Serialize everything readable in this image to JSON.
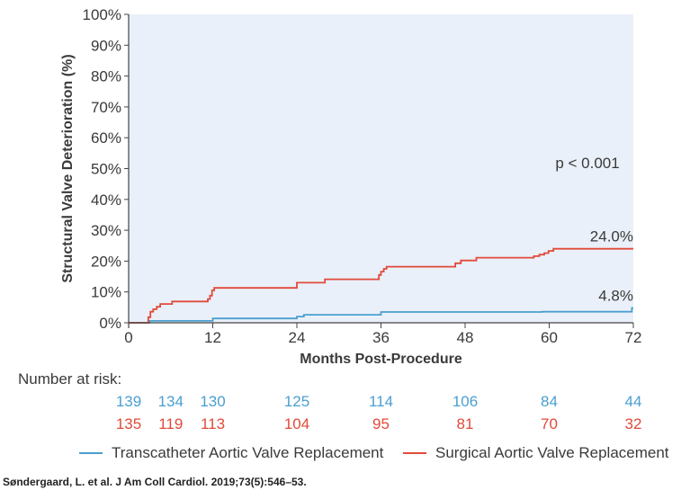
{
  "chart_data": {
    "type": "line",
    "step": true,
    "ylabel": "Structural Valve Deterioration (%)",
    "xlabel": "Months Post-Procedure",
    "ylim": [
      0,
      100
    ],
    "xlim": [
      0,
      72
    ],
    "y_ticks": [
      0,
      10,
      20,
      30,
      40,
      50,
      60,
      70,
      80,
      90,
      100
    ],
    "y_tick_labels": [
      "0%",
      "10%",
      "20%",
      "30%",
      "40%",
      "50%",
      "60%",
      "70%",
      "80%",
      "90%",
      "100%"
    ],
    "x_ticks": [
      0,
      12,
      24,
      36,
      48,
      60,
      72
    ],
    "x_tick_labels": [
      "0",
      "12",
      "24",
      "36",
      "48",
      "60",
      "72"
    ],
    "annotation": "p < 0.001",
    "series": [
      {
        "name": "Transcatheter Aortic Valve Replacement",
        "color": "#4a9fd0",
        "end_label": "4.8%",
        "points": [
          [
            0,
            0
          ],
          [
            3,
            0
          ],
          [
            3,
            0.6
          ],
          [
            12,
            0.6
          ],
          [
            12,
            1.4
          ],
          [
            24,
            1.4
          ],
          [
            24,
            2.0
          ],
          [
            25,
            2.0
          ],
          [
            25,
            2.6
          ],
          [
            36,
            2.6
          ],
          [
            36,
            3.5
          ],
          [
            59,
            3.5
          ],
          [
            59,
            3.6
          ],
          [
            71.8,
            3.6
          ],
          [
            71.8,
            4.8
          ],
          [
            72,
            4.8
          ]
        ]
      },
      {
        "name": "Surgical Aortic Valve Replacement",
        "color": "#e04a3a",
        "end_label": "24.0%",
        "points": [
          [
            0,
            0
          ],
          [
            2.8,
            0
          ],
          [
            2.8,
            1.8
          ],
          [
            3.1,
            1.8
          ],
          [
            3.1,
            3.6
          ],
          [
            3.5,
            3.6
          ],
          [
            3.5,
            4.4
          ],
          [
            4,
            4.4
          ],
          [
            4,
            5.2
          ],
          [
            4.5,
            5.2
          ],
          [
            4.5,
            6.1
          ],
          [
            6.2,
            6.1
          ],
          [
            6.2,
            6.9
          ],
          [
            11.3,
            6.9
          ],
          [
            11.3,
            7.7
          ],
          [
            11.6,
            7.7
          ],
          [
            11.6,
            8.8
          ],
          [
            11.9,
            8.8
          ],
          [
            11.9,
            10.5
          ],
          [
            12.2,
            10.5
          ],
          [
            12.2,
            11.3
          ],
          [
            24,
            11.3
          ],
          [
            24,
            13.0
          ],
          [
            28,
            13.0
          ],
          [
            28,
            14.1
          ],
          [
            35.7,
            14.1
          ],
          [
            35.7,
            15.5
          ],
          [
            36,
            15.5
          ],
          [
            36,
            16.6
          ],
          [
            36.4,
            16.6
          ],
          [
            36.4,
            17.5
          ],
          [
            36.8,
            17.5
          ],
          [
            36.8,
            18.2
          ],
          [
            46.6,
            18.2
          ],
          [
            46.6,
            19.3
          ],
          [
            47.4,
            19.3
          ],
          [
            47.4,
            20.2
          ],
          [
            49.6,
            20.2
          ],
          [
            49.6,
            21.1
          ],
          [
            57.8,
            21.1
          ],
          [
            57.8,
            21.6
          ],
          [
            58.6,
            21.6
          ],
          [
            58.6,
            22.1
          ],
          [
            59.3,
            22.1
          ],
          [
            59.3,
            22.6
          ],
          [
            59.9,
            22.6
          ],
          [
            59.9,
            23.3
          ],
          [
            60.6,
            23.3
          ],
          [
            60.6,
            24.0
          ],
          [
            72,
            24.0
          ]
        ]
      }
    ],
    "risk_table": {
      "title": "Number at risk:",
      "times": [
        0,
        6,
        12,
        24,
        36,
        48,
        60,
        72
      ],
      "rows": [
        {
          "series": "Transcatheter Aortic Valve Replacement",
          "color": "#4a9fd0",
          "values": [
            "139",
            "134",
            "130",
            "125",
            "114",
            "106",
            "84",
            "44"
          ]
        },
        {
          "series": "Surgical Aortic Valve Replacement",
          "color": "#e04a3a",
          "values": [
            "135",
            "119",
            "113",
            "104",
            "95",
            "81",
            "70",
            "32"
          ]
        }
      ]
    },
    "legend": [
      {
        "label": "Transcatheter Aortic Valve Replacement",
        "color": "#4a9fd0"
      },
      {
        "label": "Surgical Aortic Valve Replacement",
        "color": "#e04a3a"
      }
    ],
    "citation": "Søndergaard, L. et al. J Am Coll Cardiol. 2019;73(5):546–53.",
    "colors": {
      "plot_background": "#eaf0f9",
      "axis": "#444444"
    }
  }
}
